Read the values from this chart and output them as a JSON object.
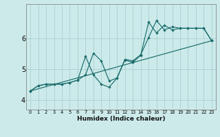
{
  "xlabel": "Humidex (Indice chaleur)",
  "bg_color": "#cceaea",
  "grid_color": "#aacfcf",
  "line_color": "#1a6b6b",
  "xlim": [
    -0.5,
    23.5
  ],
  "ylim": [
    3.7,
    7.1
  ],
  "yticks": [
    4,
    5,
    6
  ],
  "xticks": [
    0,
    1,
    2,
    3,
    4,
    5,
    6,
    7,
    8,
    9,
    10,
    11,
    12,
    13,
    14,
    15,
    16,
    17,
    18,
    19,
    20,
    21,
    22,
    23
  ],
  "line1_x": [
    0,
    1,
    2,
    3,
    4,
    5,
    6,
    7,
    8,
    9,
    10,
    11,
    12,
    13,
    14,
    15,
    16,
    17,
    18,
    19,
    20,
    21,
    22,
    23
  ],
  "line1_y": [
    4.3,
    4.47,
    4.52,
    4.52,
    4.52,
    4.57,
    4.65,
    5.42,
    4.82,
    4.52,
    4.42,
    4.72,
    5.3,
    5.22,
    5.45,
    6.52,
    6.17,
    6.42,
    6.27,
    6.32,
    6.32,
    6.32,
    6.32,
    5.92
  ],
  "line2_x": [
    0,
    1,
    2,
    3,
    4,
    5,
    6,
    7,
    8,
    9,
    10,
    11,
    12,
    13,
    14,
    15,
    16,
    17,
    18,
    19,
    20,
    21,
    22,
    23
  ],
  "line2_y": [
    4.3,
    4.47,
    4.52,
    4.52,
    4.52,
    4.57,
    4.65,
    4.82,
    5.52,
    5.27,
    4.62,
    4.72,
    5.32,
    5.27,
    5.47,
    6.02,
    6.57,
    6.27,
    6.37,
    6.32,
    6.32,
    6.32,
    6.32,
    5.92
  ],
  "line3_x": [
    0,
    23
  ],
  "line3_y": [
    4.3,
    5.92
  ]
}
